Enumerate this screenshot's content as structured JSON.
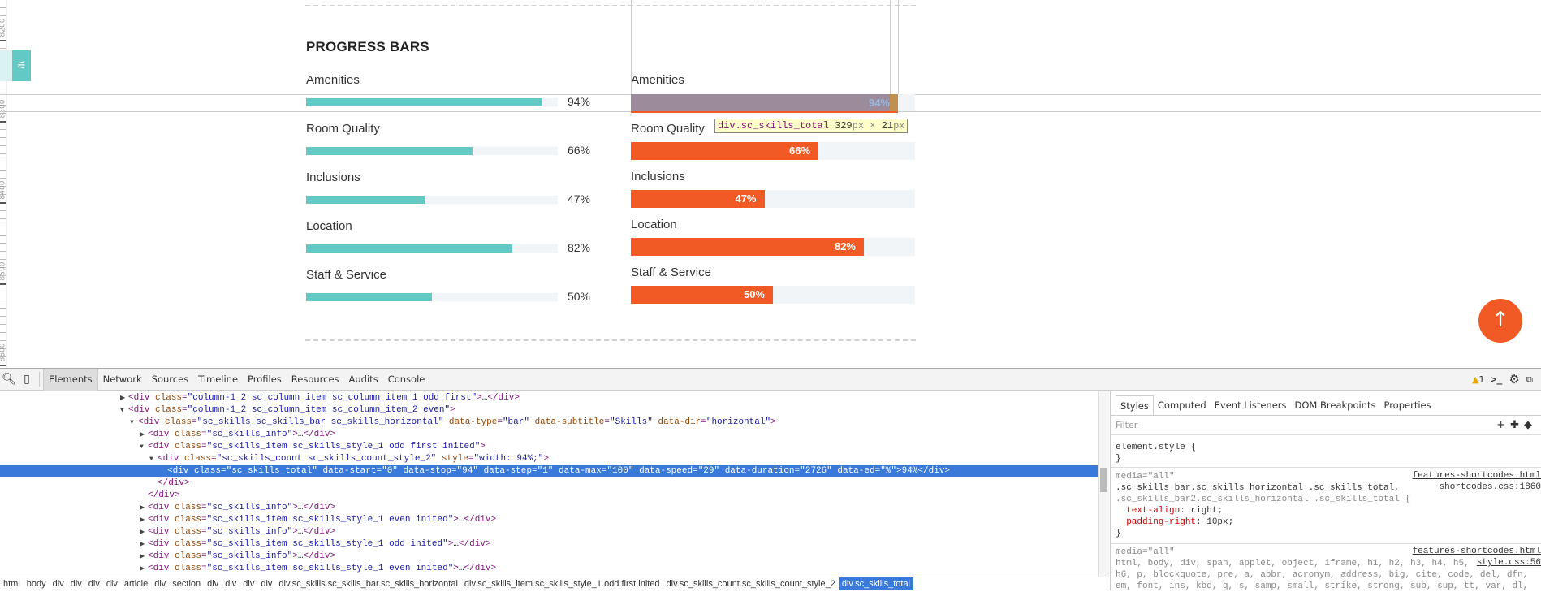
{
  "ruler": {
    "labels": [
      "8200",
      "8300",
      "8400",
      "8500",
      "8600"
    ]
  },
  "page": {
    "title": "PROGRESS BARS",
    "accent_teal": "#63c9c4",
    "accent_orange": "#f15a24",
    "left_bars": [
      {
        "label": "Amenities",
        "value": 94,
        "text": "94%"
      },
      {
        "label": "Room Quality",
        "value": 66,
        "text": "66%"
      },
      {
        "label": "Inclusions",
        "value": 47,
        "text": "47%"
      },
      {
        "label": "Location",
        "value": 82,
        "text": "82%"
      },
      {
        "label": "Staff & Service",
        "value": 50,
        "text": "50%"
      }
    ],
    "right_bars": [
      {
        "label": "Amenities",
        "value": 94,
        "text": "94%"
      },
      {
        "label": "Room Quality",
        "value": 66,
        "text": "66%"
      },
      {
        "label": "Inclusions",
        "value": 47,
        "text": "47%"
      },
      {
        "label": "Location",
        "value": 82,
        "text": "82%"
      },
      {
        "label": "Staff & Service",
        "value": 50,
        "text": "50%"
      }
    ],
    "tooltip": {
      "selector": "div.sc_skills_total",
      "width": "329",
      "height": "21",
      "unit": "px",
      "times": "×"
    },
    "scroll_top_icon": "arrow-up-icon",
    "panel_icon": "sliders-icon"
  },
  "devtools": {
    "tabs": [
      "Elements",
      "Network",
      "Sources",
      "Timeline",
      "Profiles",
      "Resources",
      "Audits",
      "Console"
    ],
    "active_tab": "Elements",
    "warning_count": "1",
    "dom_lines": [
      {
        "indent": 0,
        "arrow": "right",
        "text": "<div class=\"column-1_2 sc_column_item sc_column_item_1 odd first\">…</div>"
      },
      {
        "indent": 0,
        "arrow": "down",
        "text": "<div class=\"column-1_2 sc_column_item sc_column_item_2 even\">"
      },
      {
        "indent": 1,
        "arrow": "down",
        "text": "<div class=\"sc_skills sc_skills_bar sc_skills_horizontal\" data-type=\"bar\" data-subtitle=\"Skills\" data-dir=\"horizontal\">"
      },
      {
        "indent": 2,
        "arrow": "right",
        "text": "<div class=\"sc_skills_info\">…</div>"
      },
      {
        "indent": 2,
        "arrow": "down",
        "text": "<div class=\"sc_skills_item sc_skills_style_1 odd first inited\">"
      },
      {
        "indent": 3,
        "arrow": "down",
        "text": "<div class=\"sc_skills_count sc_skills_count_style_2\" style=\"width: 94%;\">"
      },
      {
        "indent": 4,
        "arrow": "",
        "selected": true,
        "text": "<div class=\"sc_skills_total\" data-start=\"0\" data-stop=\"94\" data-step=\"1\" data-max=\"100\" data-speed=\"29\" data-duration=\"2726\" data-ed=\"%\">94%</div>"
      },
      {
        "indent": 3,
        "arrow": "",
        "text": "</div>"
      },
      {
        "indent": 2,
        "arrow": "",
        "text": "</div>"
      },
      {
        "indent": 2,
        "arrow": "right",
        "text": "<div class=\"sc_skills_info\">…</div>"
      },
      {
        "indent": 2,
        "arrow": "right",
        "text": "<div class=\"sc_skills_item sc_skills_style_1 even inited\">…</div>"
      },
      {
        "indent": 2,
        "arrow": "right",
        "text": "<div class=\"sc_skills_info\">…</div>"
      },
      {
        "indent": 2,
        "arrow": "right",
        "text": "<div class=\"sc_skills_item sc_skills_style_1 odd inited\">…</div>"
      },
      {
        "indent": 2,
        "arrow": "right",
        "text": "<div class=\"sc_skills_info\">…</div>"
      },
      {
        "indent": 2,
        "arrow": "right",
        "text": "<div class=\"sc_skills_item sc_skills_style_1 even inited\">…</div>"
      }
    ],
    "breadcrumbs": [
      "html",
      "body",
      "div",
      "div",
      "div",
      "div",
      "article",
      "div",
      "section",
      "div",
      "div",
      "div",
      "div",
      "div.sc_skills.sc_skills_bar.sc_skills_horizontal",
      "div.sc_skills_item.sc_skills_style_1.odd.first.inited",
      "div.sc_skills_count.sc_skills_count_style_2",
      "div.sc_skills_total"
    ],
    "styles": {
      "tabs": [
        "Styles",
        "Computed",
        "Event Listeners",
        "DOM Breakpoints",
        "Properties"
      ],
      "filter_placeholder": "Filter",
      "element_style_open": "element.style {",
      "close_brace": "}",
      "rule1": {
        "media": "media=\"all\"",
        "source1": "features-shortcodes.html",
        "source2": "shortcodes.css:1860",
        "selector1": ".sc_skills_bar.sc_skills_horizontal .sc_skills_total,",
        "selector2": ".sc_skills_bar2.sc_skills_horizontal .sc_skills_total {",
        "prop1": "text-align",
        "val1": "right;",
        "prop2": "padding-right",
        "val2": "10px;"
      },
      "rule2": {
        "media": "media=\"all\"",
        "source1": "features-shortcodes.html",
        "source2": "style.css:56",
        "line1": "html, body, div, span, applet, object, iframe, h1, h2, h3, h4, h5,",
        "line2": "h6, p, blockquote, pre, a, abbr, acronym, address, big, cite, code, del, dfn,",
        "line3": "em, font, ins, kbd, q, s, samp, small, strike, strong, sub, sup, tt, var, dl,"
      }
    }
  }
}
